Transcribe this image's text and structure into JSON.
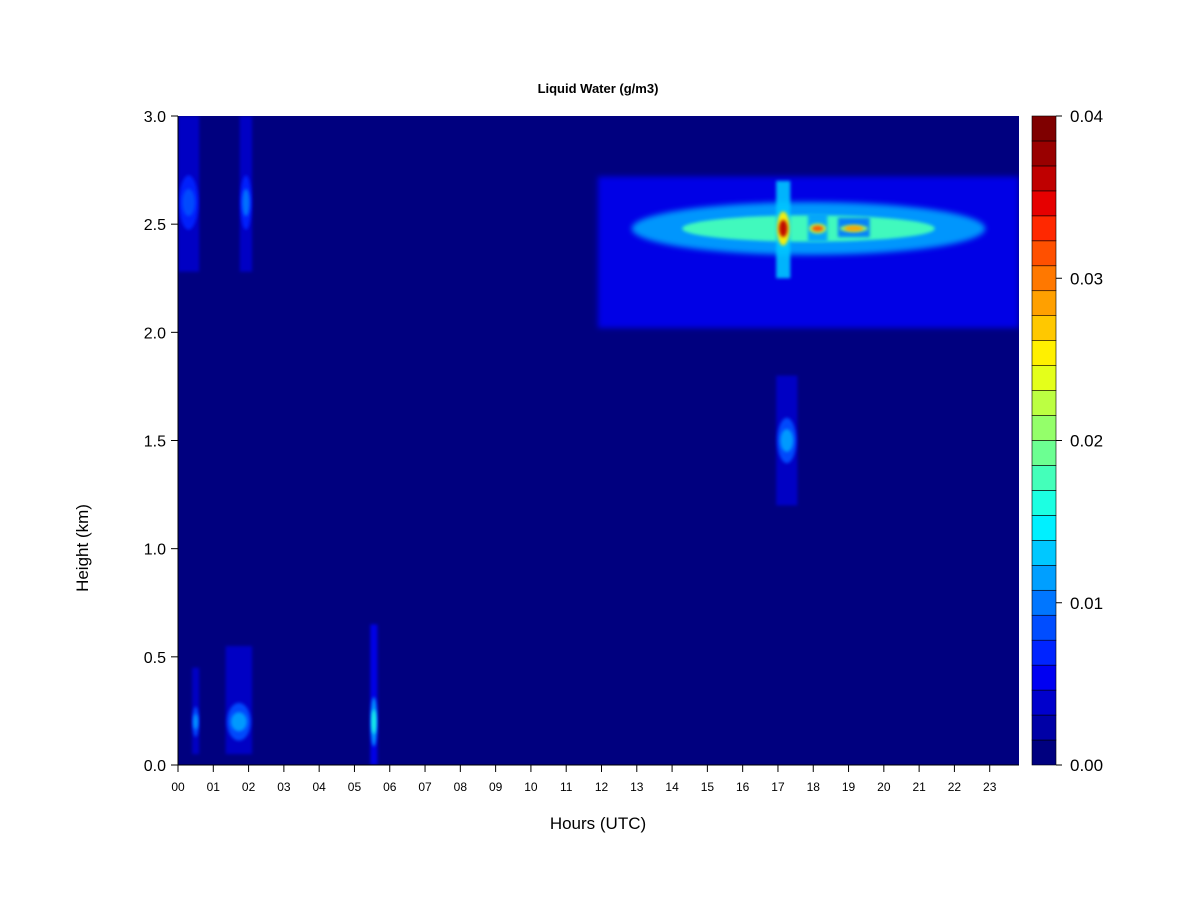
{
  "chart_data": {
    "type": "heatmap",
    "title": "Liquid Water (g/m3)",
    "xlabel": "Hours (UTC)",
    "ylabel": "Height (km)",
    "xlim": [
      0,
      23.83
    ],
    "ylim": [
      0.0,
      3.0
    ],
    "x_ticks": [
      {
        "value": 0,
        "label": "00"
      },
      {
        "value": 1,
        "label": "01"
      },
      {
        "value": 2,
        "label": "02"
      },
      {
        "value": 3,
        "label": "03"
      },
      {
        "value": 4,
        "label": "04"
      },
      {
        "value": 5,
        "label": "05"
      },
      {
        "value": 6,
        "label": "06"
      },
      {
        "value": 7,
        "label": "07"
      },
      {
        "value": 8,
        "label": "08"
      },
      {
        "value": 9,
        "label": "09"
      },
      {
        "value": 10,
        "label": "10"
      },
      {
        "value": 11,
        "label": "11"
      },
      {
        "value": 12,
        "label": "12"
      },
      {
        "value": 13,
        "label": "13"
      },
      {
        "value": 14,
        "label": "14"
      },
      {
        "value": 15,
        "label": "15"
      },
      {
        "value": 16,
        "label": "16"
      },
      {
        "value": 17,
        "label": "17"
      },
      {
        "value": 18,
        "label": "18"
      },
      {
        "value": 19,
        "label": "19"
      },
      {
        "value": 20,
        "label": "20"
      },
      {
        "value": 21,
        "label": "21"
      },
      {
        "value": 22,
        "label": "22"
      },
      {
        "value": 23,
        "label": "23"
      }
    ],
    "y_ticks": [
      {
        "value": 0.0,
        "label": "0.0"
      },
      {
        "value": 0.5,
        "label": "0.5"
      },
      {
        "value": 1.0,
        "label": "1.0"
      },
      {
        "value": 1.5,
        "label": "1.5"
      },
      {
        "value": 2.0,
        "label": "2.0"
      },
      {
        "value": 2.5,
        "label": "2.5"
      },
      {
        "value": 3.0,
        "label": "3.0"
      }
    ],
    "colorbar": {
      "min": 0.0,
      "max": 0.04,
      "ticks": [
        {
          "value": 0.0,
          "label": "0.00"
        },
        {
          "value": 0.01,
          "label": "0.01"
        },
        {
          "value": 0.02,
          "label": "0.02"
        },
        {
          "value": 0.03,
          "label": "0.03"
        },
        {
          "value": 0.04,
          "label": "0.04"
        }
      ],
      "levels": [
        "#00007f",
        "#0000a6",
        "#0000cc",
        "#0000f2",
        "#0024ff",
        "#004dff",
        "#0076ff",
        "#009fff",
        "#00c8ff",
        "#00f0ff",
        "#1cffe2",
        "#44ffba",
        "#6cff92",
        "#94ff6a",
        "#bcff42",
        "#e4ff1a",
        "#fff000",
        "#ffc800",
        "#ffa000",
        "#ff7800",
        "#ff5000",
        "#ff2800",
        "#e60000",
        "#bf0000",
        "#990000",
        "#7f0000"
      ]
    },
    "cloud_features": [
      {
        "name": "upper cloud layer",
        "x_range": [
          11.9,
          23.83
        ],
        "y_range": [
          2.02,
          2.72
        ],
        "peak_height": 2.48,
        "value": 0.017
      },
      {
        "name": "core near 17 UTC",
        "x_range": [
          16.95,
          17.35
        ],
        "y_range": [
          2.25,
          2.7
        ],
        "peak_height": 2.48,
        "value": 0.036
      },
      {
        "name": "core near 18 UTC",
        "x_range": [
          17.85,
          18.4
        ],
        "y_range": [
          2.42,
          2.55
        ],
        "peak_height": 2.48,
        "value": 0.031
      },
      {
        "name": "core near 19 UTC",
        "x_range": [
          18.7,
          19.6
        ],
        "y_range": [
          2.44,
          2.53
        ],
        "peak_height": 2.48,
        "value": 0.029
      },
      {
        "name": "mid-level patch",
        "x_range": [
          16.95,
          17.55
        ],
        "y_range": [
          1.2,
          1.8
        ],
        "peak_height": 1.5,
        "value": 0.012
      },
      {
        "name": "low-level cloud 00-01 UTC",
        "x_range": [
          0.4,
          0.6
        ],
        "y_range": [
          0.05,
          0.45
        ],
        "peak_height": 0.2,
        "value": 0.012
      },
      {
        "name": "low-level cloud 01-02 UTC",
        "x_range": [
          1.35,
          2.1
        ],
        "y_range": [
          0.05,
          0.55
        ],
        "peak_height": 0.2,
        "value": 0.011
      },
      {
        "name": "low-level cloud 05-06 UTC",
        "x_range": [
          5.45,
          5.65
        ],
        "y_range": [
          0.0,
          0.65
        ],
        "peak_height": 0.2,
        "value": 0.016
      },
      {
        "name": "upper streak 00-01 UTC",
        "x_range": [
          0.0,
          0.6
        ],
        "y_range": [
          2.28,
          3.0
        ],
        "peak_height": 2.6,
        "value": 0.009
      },
      {
        "name": "upper streak 02 UTC",
        "x_range": [
          1.75,
          2.1
        ],
        "y_range": [
          2.28,
          3.0
        ],
        "peak_height": 2.6,
        "value": 0.01
      }
    ]
  }
}
